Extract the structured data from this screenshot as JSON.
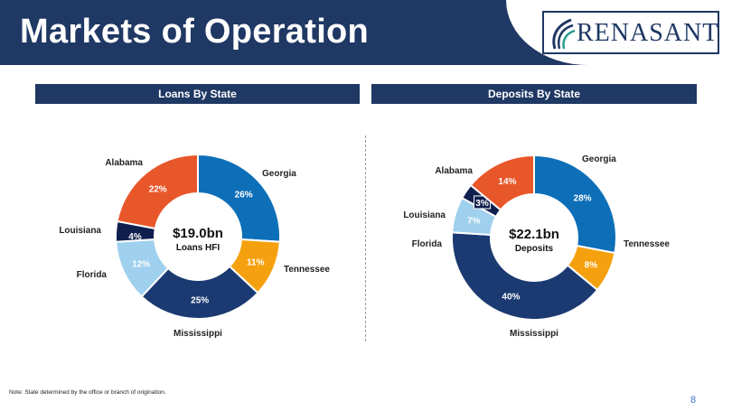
{
  "title": "Markets of Operation",
  "logo": {
    "text": "RENASANT"
  },
  "colors": {
    "header": "#1f3864",
    "Georgia": "#0d6fb8",
    "Tennessee": "#f5a10f",
    "Mississippi": "#1b3a72",
    "Florida": "#9fd0ee",
    "Louisiana": "#0f1f4d",
    "Alabama": "#e8572a"
  },
  "chart_data": [
    {
      "type": "pie",
      "title": "Loans By State",
      "center_value": "$19.0bn",
      "center_label": "Loans HFI",
      "slices": [
        {
          "label": "Georgia",
          "value": 26,
          "value_label": "26%"
        },
        {
          "label": "Tennessee",
          "value": 11,
          "value_label": "11%"
        },
        {
          "label": "Mississippi",
          "value": 25,
          "value_label": "25%"
        },
        {
          "label": "Florida",
          "value": 12,
          "value_label": "12%"
        },
        {
          "label": "Louisiana",
          "value": 4,
          "value_label": "4%"
        },
        {
          "label": "Alabama",
          "value": 22,
          "value_label": "22%"
        }
      ]
    },
    {
      "type": "pie",
      "title": "Deposits By State",
      "center_value": "$22.1bn",
      "center_label": "Deposits",
      "slices": [
        {
          "label": "Georgia",
          "value": 28,
          "value_label": "28%"
        },
        {
          "label": "Tennessee",
          "value": 8,
          "value_label": "8%"
        },
        {
          "label": "Mississippi",
          "value": 40,
          "value_label": "40%"
        },
        {
          "label": "Florida",
          "value": 7,
          "value_label": "7%"
        },
        {
          "label": "Louisiana",
          "value": 3,
          "value_label": "3%"
        },
        {
          "label": "Alabama",
          "value": 14,
          "value_label": "14%"
        }
      ]
    }
  ],
  "note": "Note: State determined by the office or branch of origination.",
  "page_number": "8"
}
